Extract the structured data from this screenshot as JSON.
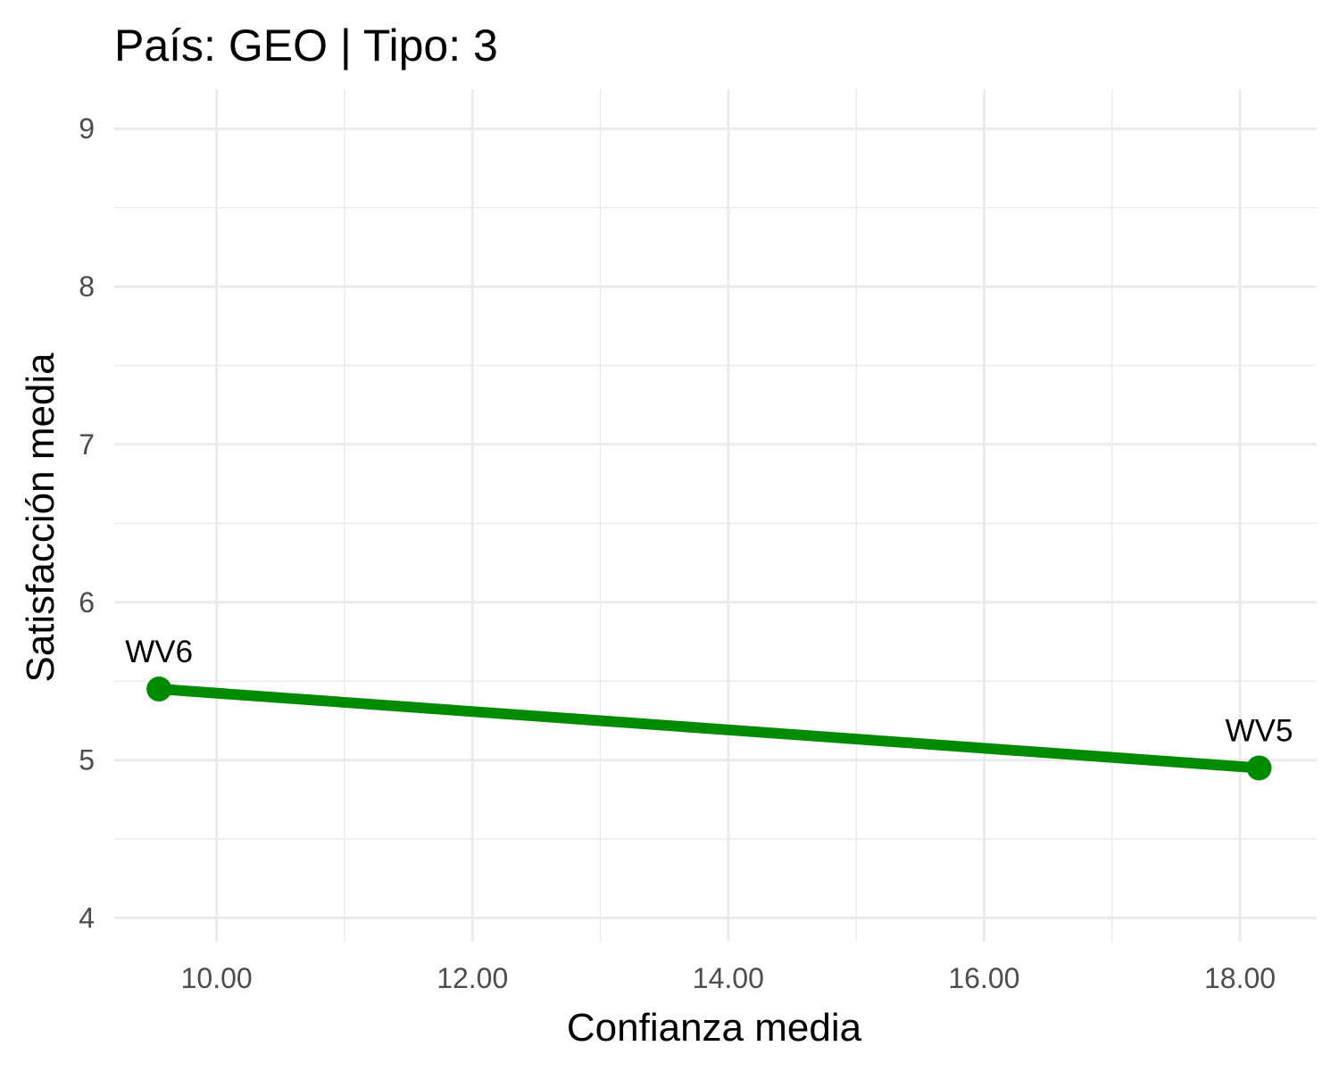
{
  "chart_data": {
    "type": "line",
    "title": "País: GEO | Tipo: 3",
    "xlabel": "Confianza media",
    "ylabel": "Satisfacción media",
    "xlim": [
      9.2,
      18.6
    ],
    "ylim": [
      3.85,
      9.25
    ],
    "x_ticks": [
      10,
      12,
      14,
      16,
      18
    ],
    "x_tick_labels": [
      "10.00",
      "12.00",
      "14.00",
      "16.00",
      "18.00"
    ],
    "y_ticks": [
      4,
      5,
      6,
      7,
      8,
      9
    ],
    "y_tick_labels": [
      "4",
      "5",
      "6",
      "7",
      "8",
      "9"
    ],
    "grid": true,
    "legend": "none",
    "series": [
      {
        "color": "#008b00",
        "points": [
          {
            "label": "WV6",
            "x": 9.55,
            "y": 5.45
          },
          {
            "label": "WV5",
            "x": 18.15,
            "y": 4.95
          }
        ]
      }
    ]
  }
}
